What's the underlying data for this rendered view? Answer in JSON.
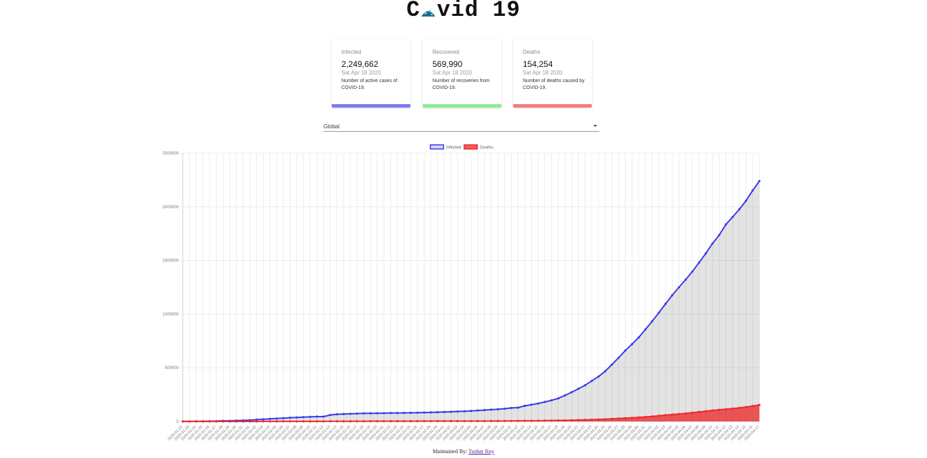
{
  "header": {
    "title_prefix": "C",
    "title_suffix": "vid 19"
  },
  "cards": [
    {
      "label": "Infected",
      "value": "2,249,662",
      "date": "Sat Apr 18 2020",
      "description": "Number of active cases of COVID-19.",
      "color": "#7b7bef"
    },
    {
      "label": "Recovered",
      "value": "569,990",
      "date": "Sat Apr 18 2020",
      "description": "Number of recoveries from COVID-19.",
      "color": "#8ced8c"
    },
    {
      "label": "Deaths",
      "value": "154,254",
      "date": "Sat Apr 18 2020",
      "description": "Number of deaths caused by COVID-19.",
      "color": "#f47c7c"
    }
  ],
  "country_select": {
    "value": "Global"
  },
  "footer": {
    "prefix": "Maintained By: ",
    "author": "Tushar Roy"
  },
  "chart_data": {
    "type": "line",
    "grid": true,
    "legend_position": "top",
    "ylim": [
      0,
      2500000
    ],
    "yticks": [
      "0",
      "500000",
      "1000000",
      "1500000",
      "2000000",
      "2500000"
    ],
    "x": [
      "2020-01-22",
      "2020-01-23",
      "2020-01-24",
      "2020-01-25",
      "2020-01-26",
      "2020-01-27",
      "2020-01-28",
      "2020-01-29",
      "2020-01-30",
      "2020-01-31",
      "2020-02-01",
      "2020-02-02",
      "2020-02-03",
      "2020-02-04",
      "2020-02-05",
      "2020-02-06",
      "2020-02-07",
      "2020-02-08",
      "2020-02-09",
      "2020-02-10",
      "2020-02-11",
      "2020-02-12",
      "2020-02-13",
      "2020-02-14",
      "2020-02-15",
      "2020-02-16",
      "2020-02-17",
      "2020-02-18",
      "2020-02-19",
      "2020-02-20",
      "2020-02-21",
      "2020-02-22",
      "2020-02-23",
      "2020-02-24",
      "2020-02-25",
      "2020-02-26",
      "2020-02-27",
      "2020-02-28",
      "2020-02-29",
      "2020-03-01",
      "2020-03-02",
      "2020-03-03",
      "2020-03-04",
      "2020-03-05",
      "2020-03-06",
      "2020-03-07",
      "2020-03-08",
      "2020-03-09",
      "2020-03-10",
      "2020-03-11",
      "2020-03-12",
      "2020-03-13",
      "2020-03-14",
      "2020-03-15",
      "2020-03-16",
      "2020-03-17",
      "2020-03-18",
      "2020-03-19",
      "2020-03-20",
      "2020-03-21",
      "2020-03-22",
      "2020-03-23",
      "2020-03-24",
      "2020-03-25",
      "2020-03-26",
      "2020-03-27",
      "2020-03-28",
      "2020-03-29",
      "2020-03-30",
      "2020-03-31",
      "2020-04-01",
      "2020-04-02",
      "2020-04-03",
      "2020-04-04",
      "2020-04-05",
      "2020-04-06",
      "2020-04-07",
      "2020-04-08",
      "2020-04-09",
      "2020-04-10",
      "2020-04-11",
      "2020-04-12",
      "2020-04-13",
      "2020-04-14",
      "2020-04-15",
      "2020-04-16",
      "2020-04-17"
    ],
    "series": [
      {
        "name": "Infected",
        "color": "#3a3aea",
        "values": [
          555,
          654,
          941,
          1434,
          2118,
          2927,
          5578,
          6166,
          8234,
          9927,
          12038,
          16787,
          19881,
          23892,
          27635,
          30794,
          34391,
          37120,
          40150,
          42762,
          44802,
          45221,
          60368,
          66885,
          69030,
          71224,
          73258,
          75136,
          75639,
          76197,
          76819,
          78572,
          78958,
          79561,
          80406,
          81388,
          82746,
          84112,
          86011,
          88369,
          90306,
          92840,
          95120,
          97886,
          101801,
          105847,
          109821,
          113590,
          118620,
          125875,
          128352,
          145205,
          156101,
          167454,
          181574,
          197102,
          214821,
          242570,
          272208,
          304507,
          336953,
          378235,
          418045,
          467653,
          529591,
          593291,
          660706,
          720117,
          782365,
          857487,
          932605,
          1013157,
          1095917,
          1176060,
          1249754,
          1321481,
          1396476,
          1480202,
          1565278,
          1657526,
          1735650,
          1834721,
          1904838,
          1976191,
          2056054,
          2152437,
          2240191
        ]
      },
      {
        "name": "Deaths",
        "color": "#ee2a2a",
        "values": [
          17,
          18,
          26,
          42,
          56,
          82,
          131,
          133,
          171,
          213,
          259,
          362,
          426,
          492,
          564,
          634,
          719,
          806,
          906,
          1013,
          1113,
          1118,
          1371,
          1523,
          1666,
          1770,
          1868,
          2007,
          2122,
          2247,
          2251,
          2458,
          2469,
          2629,
          2708,
          2770,
          2814,
          2872,
          2941,
          2996,
          3085,
          3160,
          3254,
          3348,
          3460,
          3558,
          3802,
          3988,
          4262,
          4615,
          4720,
          5404,
          5819,
          6440,
          7126,
          7905,
          8733,
          9867,
          11299,
          12973,
          14651,
          16505,
          18625,
          21181,
          23970,
          27198,
          30652,
          33925,
          37582,
          42107,
          46809,
          52983,
          58787,
          64606,
          69374,
          74565,
          81865,
          88338,
          95455,
          102525,
          108503,
          114091,
          119482,
          125984,
          134177,
          143800,
          153822
        ]
      }
    ]
  }
}
